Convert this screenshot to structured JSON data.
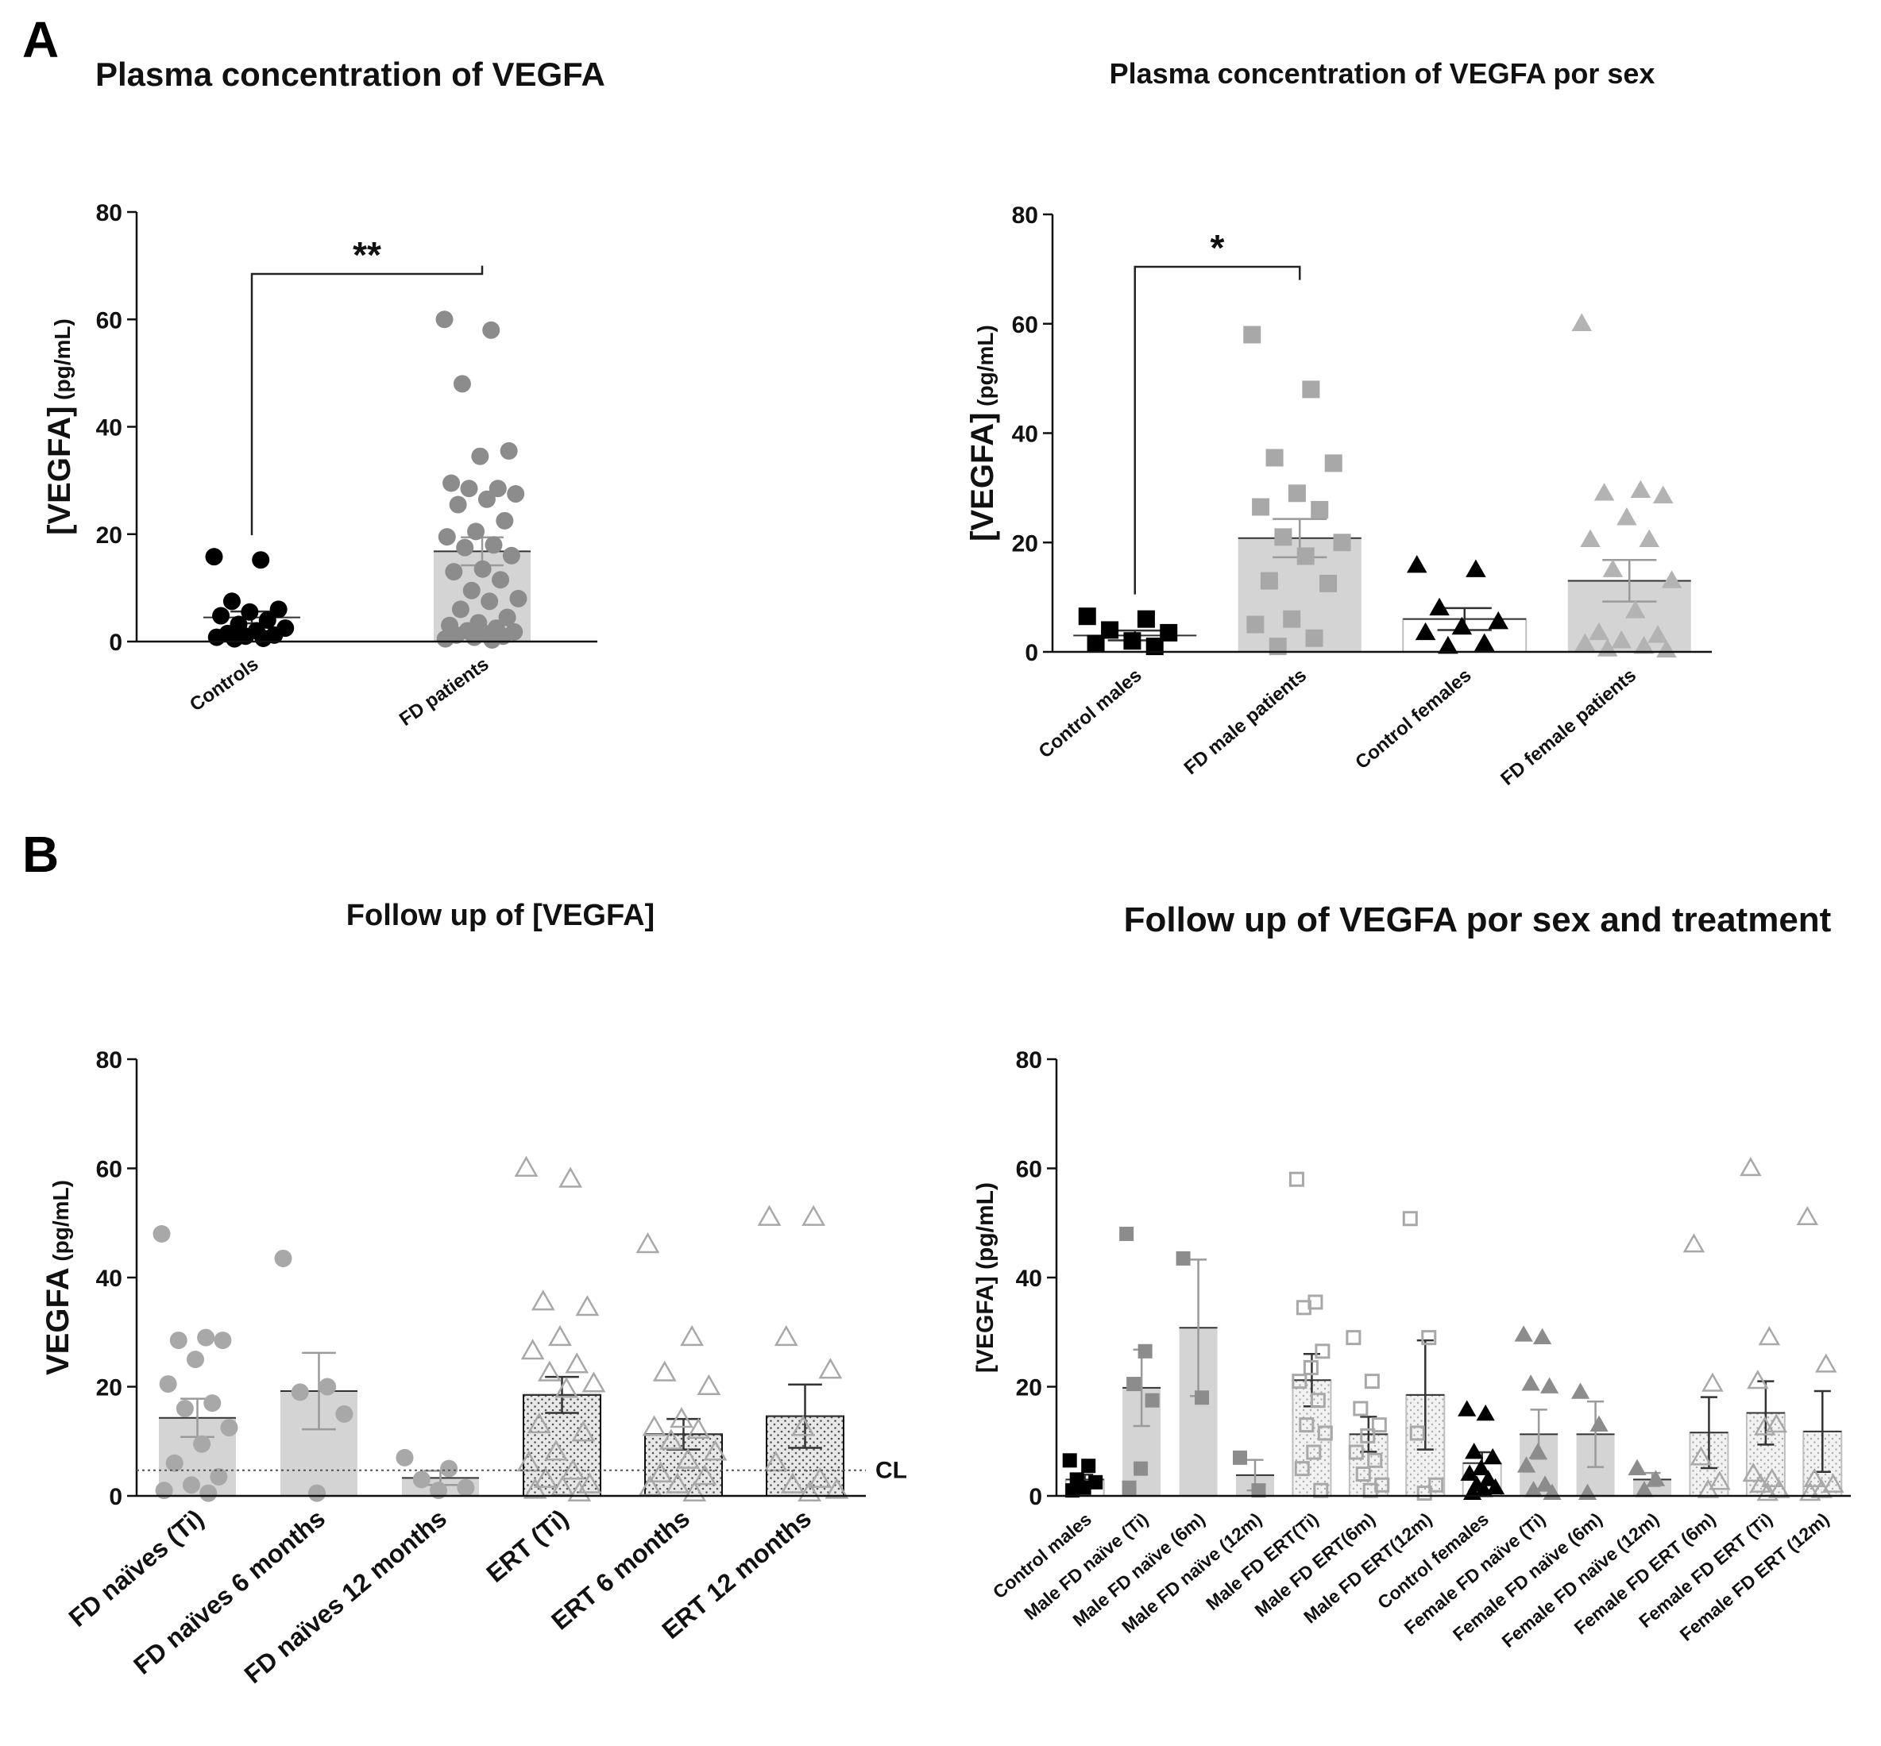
{
  "panels": {
    "A": "A",
    "B": "B"
  },
  "chart_data": [
    {
      "id": "c1",
      "type": "bar",
      "title": "Plasma concentration of VEGFA",
      "ylabel_main": "[VEGFA]",
      "ylabel_unit": " (pg/mL)",
      "ylim": [
        0,
        80
      ],
      "yticks": [
        0,
        20,
        40,
        60,
        80
      ],
      "significance": "**",
      "categories": [
        "Controls",
        "FD patients"
      ],
      "means": [
        4.5,
        16.8
      ],
      "sem": [
        1.1,
        2.6
      ],
      "points": [
        [
          15.8,
          15.2,
          7.5,
          6.0,
          5.5,
          4.8,
          4.0,
          3.2,
          2.5,
          2.0,
          1.5,
          1.2,
          1.0,
          0.8,
          0.6,
          0.5
        ],
        [
          60.0,
          58.0,
          48.0,
          35.5,
          34.5,
          29.5,
          28.5,
          28.5,
          27.5,
          26.5,
          25.5,
          22.5,
          20.5,
          19.5,
          18.0,
          17.5,
          16.0,
          13.5,
          13.0,
          11.5,
          9.5,
          8.0,
          7.5,
          6.0,
          4.5,
          3.5,
          3.0,
          2.5,
          2.0,
          1.8,
          1.5,
          1.2,
          1.0,
          0.8,
          0.5,
          0.3
        ]
      ]
    },
    {
      "id": "c2",
      "type": "bar",
      "title": "Plasma concentration of VEGFA por sex",
      "ylabel_main": "[VEGFA]",
      "ylabel_unit": " (pg/mL)",
      "ylim": [
        0,
        80
      ],
      "yticks": [
        0,
        20,
        40,
        60,
        80
      ],
      "significance": "*",
      "categories": [
        "Control males",
        "FD male patients",
        "Control females",
        "FD female patients"
      ],
      "means": [
        3.0,
        20.8,
        6.0,
        13.0
      ],
      "sem": [
        0.9,
        3.5,
        2.0,
        3.8
      ],
      "points": [
        [
          6.5,
          6.0,
          4.0,
          3.5,
          2.0,
          1.5,
          1.0
        ],
        [
          58.0,
          48.0,
          35.5,
          34.5,
          29.0,
          26.5,
          26.0,
          21.0,
          20.0,
          17.5,
          13.0,
          12.5,
          6.0,
          5.0,
          2.5,
          1.0
        ],
        [
          15.8,
          15.0,
          8.0,
          5.5,
          4.5,
          3.5,
          1.5,
          1.0
        ],
        [
          60.0,
          29.5,
          29.0,
          28.5,
          24.5,
          20.5,
          20.5,
          15.0,
          13.0,
          7.5,
          3.5,
          3.0,
          2.0,
          1.5,
          1.0,
          0.5,
          0.3
        ]
      ]
    },
    {
      "id": "c3",
      "type": "bar",
      "title": "Follow up of [VEGFA]",
      "ylabel_main": "VEGFA",
      "ylabel_unit": " (pg/mL)",
      "ylim": [
        0,
        80
      ],
      "yticks": [
        0,
        20,
        40,
        60,
        80
      ],
      "cutoff": {
        "label": "CL",
        "value": 4.7
      },
      "categories": [
        "FD naïves (Ti)",
        "FD naïves 6 months",
        "FD naïves 12 months",
        "ERT (Ti)",
        "ERT 6 months",
        "ERT 12 months"
      ],
      "means": [
        14.3,
        19.2,
        3.3,
        18.5,
        11.3,
        14.6
      ],
      "sem": [
        3.5,
        7.0,
        1.3,
        3.3,
        2.8,
        5.8
      ],
      "points": [
        [
          48.0,
          29.0,
          28.5,
          28.5,
          25.0,
          20.5,
          17.0,
          16.0,
          12.5,
          9.5,
          6.0,
          3.5,
          2.0,
          1.0,
          0.5
        ],
        [
          43.5,
          20.0,
          19.0,
          15.0,
          0.5
        ],
        [
          7.0,
          5.0,
          3.0,
          1.5,
          1.0
        ],
        [
          60.0,
          58.0,
          35.5,
          34.5,
          29.0,
          26.5,
          24.0,
          22.5,
          20.5,
          19.5,
          13.0,
          11.5,
          8.0,
          6.0,
          4.5,
          3.0,
          2.0,
          1.5,
          1.0,
          0.5
        ],
        [
          46.0,
          29.0,
          22.5,
          20.0,
          14.0,
          12.5,
          12.0,
          10.0,
          8.0,
          6.5,
          4.0,
          3.5,
          2.0,
          1.5,
          0.5
        ],
        [
          51.0,
          51.0,
          29.0,
          23.0,
          12.5,
          6.0,
          3.0,
          2.0,
          1.0,
          0.5
        ]
      ]
    },
    {
      "id": "c4",
      "type": "bar",
      "title": "Follow up of VEGFA por sex and treatment",
      "ylabel_main": "[VEGFA] (pg/mL)",
      "ylabel_unit": "",
      "ylim": [
        0,
        80
      ],
      "yticks": [
        0,
        20,
        40,
        60,
        80
      ],
      "categories": [
        "Control males",
        "Male FD naïve (Ti)",
        "Male FD naïve (6m)",
        "Male FD naïve (12m)",
        "Male FD ERT(Ti)",
        "Male FD ERT(6m)",
        "Male FD ERT(12m)",
        "Control females",
        "Female FD naïve (Ti)",
        "Female FD naïve (6m)",
        "Female FD naïve (12m)",
        "Female FD ERT (6m)",
        "Female FD ERT (Ti)",
        "Female FD ERT (12m)"
      ],
      "means": [
        3.0,
        19.8,
        30.8,
        3.8,
        21.2,
        11.3,
        18.5,
        6.0,
        11.3,
        11.3,
        3.0,
        11.6,
        15.2,
        11.8
      ],
      "sem": [
        0.9,
        7.0,
        12.5,
        2.8,
        4.8,
        3.2,
        10.0,
        2.0,
        4.5,
        6.0,
        1.2,
        6.5,
        5.8,
        7.4
      ],
      "points": [
        [
          6.5,
          5.5,
          3.0,
          2.5,
          1.5,
          1.0
        ],
        [
          48.0,
          26.5,
          20.5,
          17.5,
          5.0,
          1.5
        ],
        [
          43.5,
          18.0
        ],
        [
          7.0,
          1.0
        ],
        [
          58.0,
          35.5,
          34.5,
          26.5,
          23.5,
          21.0,
          17.5,
          13.0,
          11.5,
          8.0,
          5.0,
          1.0
        ],
        [
          29.0,
          21.0,
          16.0,
          13.0,
          11.0,
          8.0,
          6.5,
          4.0,
          2.0,
          1.0
        ],
        [
          50.8,
          29.0,
          11.5,
          2.0,
          0.5
        ],
        [
          15.8,
          15.0,
          8.0,
          7.0,
          5.0,
          4.0,
          3.0,
          2.0,
          1.5,
          1.0,
          0.5
        ],
        [
          29.5,
          29.0,
          20.5,
          20.0,
          8.0,
          5.5,
          2.0,
          1.0,
          0.5
        ],
        [
          19.0,
          13.0,
          0.5
        ],
        [
          5.0,
          3.0,
          1.0
        ],
        [
          46.0,
          20.5,
          7.0,
          2.5,
          1.0
        ],
        [
          60.0,
          29.0,
          21.0,
          13.0,
          12.5,
          4.0,
          3.0,
          2.0,
          1.0,
          0.5
        ],
        [
          51.0,
          24.0,
          3.0,
          2.0,
          1.0,
          0.5
        ]
      ]
    }
  ]
}
